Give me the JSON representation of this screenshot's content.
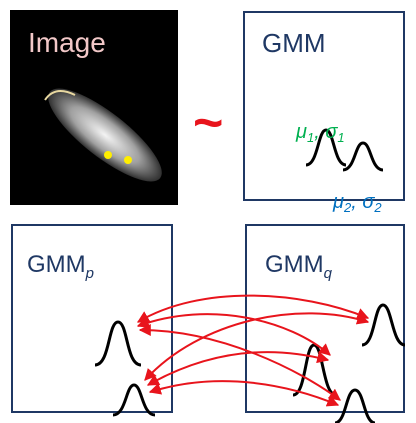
{
  "image": {
    "label": "Image"
  },
  "relation": "~",
  "gmm": {
    "label": "GMM",
    "components": [
      {
        "mu": "μ",
        "mu_sub": "1",
        "sep": ", ",
        "sigma": "σ",
        "sigma_sub": "1"
      },
      {
        "mu": "μ",
        "mu_sub": "2",
        "sep": ", ",
        "sigma": "σ",
        "sigma_sub": "2"
      }
    ]
  },
  "gmm_p": {
    "label": "GMM",
    "sub": "p"
  },
  "gmm_q": {
    "label": "GMM",
    "sub": "q"
  }
}
